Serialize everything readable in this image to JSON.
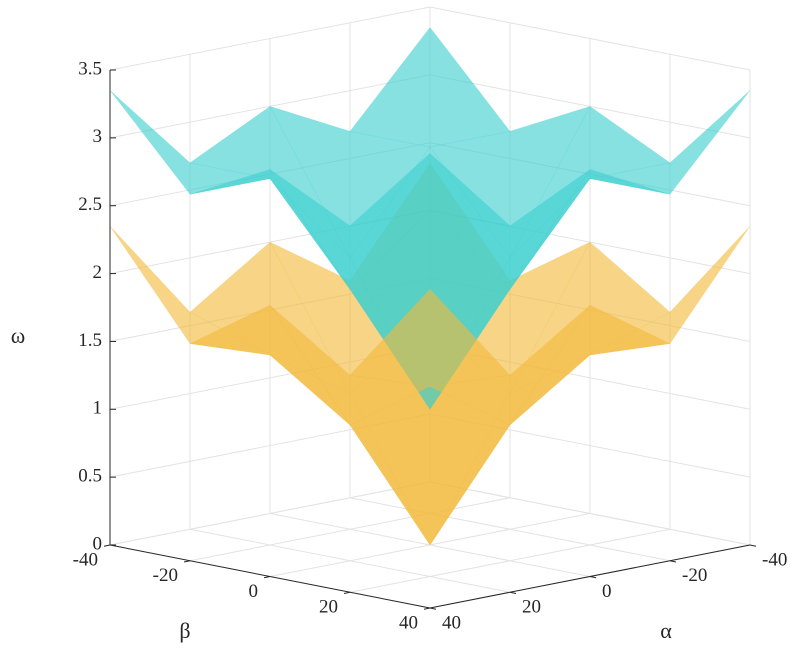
{
  "chart_data": {
    "type": "surface3d",
    "xlabel": "α",
    "ylabel": "β",
    "zlabel": "ω",
    "x": [
      -40,
      -20,
      0,
      20,
      40
    ],
    "y": [
      -40,
      -20,
      0,
      20,
      40
    ],
    "xlim": [
      -40,
      40
    ],
    "ylim": [
      -40,
      40
    ],
    "zlim": [
      0,
      3.5
    ],
    "xticks": [
      -40,
      -20,
      0,
      20,
      40
    ],
    "yticks": [
      -40,
      -20,
      0,
      20,
      40
    ],
    "zticks": [
      0,
      0.5,
      1,
      1.5,
      2,
      2.5,
      3,
      3.5
    ],
    "grid": true,
    "series": [
      {
        "color": "#f2b93b",
        "z": [
          [
            2.35,
            1.6,
            2.0,
            1.6,
            2.35
          ],
          [
            1.6,
            1.4,
            1.0,
            1.4,
            1.6
          ],
          [
            2.0,
            1.0,
            0,
            1.0,
            2.0
          ],
          [
            1.6,
            1.4,
            1.0,
            1.4,
            1.6
          ],
          [
            2.35,
            1.6,
            2.0,
            1.6,
            2.35
          ]
        ]
      },
      {
        "color": "#3ecfcf",
        "z": [
          [
            3.35,
            2.7,
            3.0,
            2.7,
            3.35
          ],
          [
            2.7,
            2.7,
            2.0,
            2.7,
            2.7
          ],
          [
            3.0,
            2.0,
            1.0,
            2.0,
            3.0
          ],
          [
            2.7,
            2.7,
            2.0,
            2.7,
            2.7
          ],
          [
            3.35,
            2.7,
            3.0,
            2.7,
            3.35
          ]
        ]
      }
    ]
  }
}
